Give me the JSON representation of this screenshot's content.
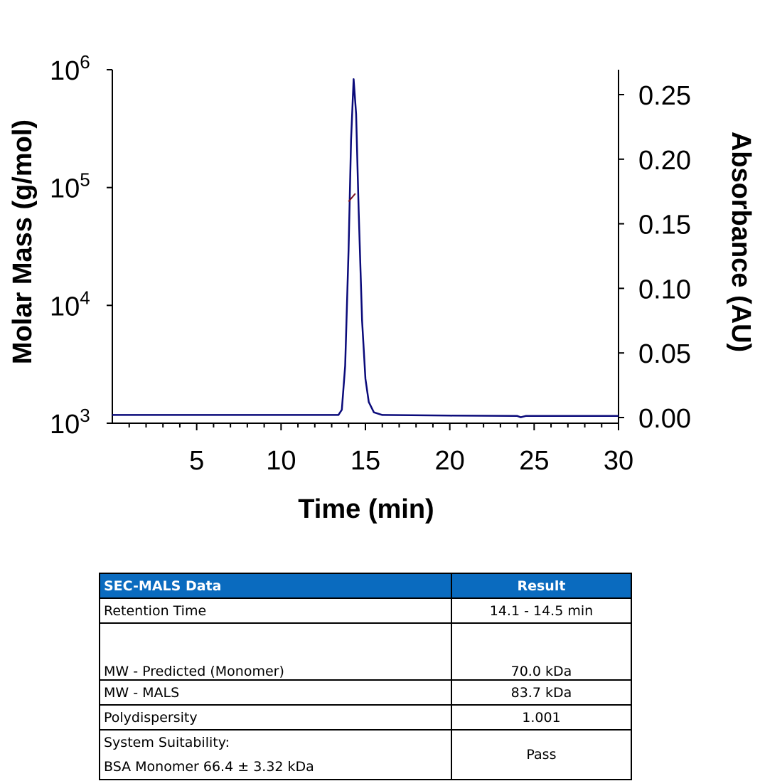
{
  "chart_data": {
    "type": "line",
    "xlabel": "Time (min)",
    "ylabel": "Molar Mass (g/mol)",
    "y2label": "Absorbance (AU)",
    "xlim": [
      0,
      30
    ],
    "ylim_log": [
      1000,
      1000000
    ],
    "y2lim": [
      0,
      0.27
    ],
    "x_ticks": [
      "5",
      "10",
      "15",
      "20",
      "25",
      "30"
    ],
    "x_tick_values": [
      5,
      10,
      15,
      20,
      25,
      30
    ],
    "y_ticks": [
      {
        "base": "10",
        "exp": "3",
        "value": 1000
      },
      {
        "base": "10",
        "exp": "4",
        "value": 10000
      },
      {
        "base": "10",
        "exp": "5",
        "value": 100000
      },
      {
        "base": "10",
        "exp": "6",
        "value": 1000000
      }
    ],
    "y2_ticks": [
      "0.00",
      "0.05",
      "0.10",
      "0.15",
      "0.20",
      "0.25"
    ],
    "y2_tick_values": [
      0,
      0.05,
      0.1,
      0.15,
      0.2,
      0.25
    ],
    "series": [
      {
        "name": "Absorbance",
        "axis": "right",
        "color": "#0a0a7a",
        "points": [
          [
            0,
            0.002
          ],
          [
            13.4,
            0.002
          ],
          [
            13.6,
            0.006
          ],
          [
            13.8,
            0.04
          ],
          [
            14.0,
            0.13
          ],
          [
            14.15,
            0.215
          ],
          [
            14.3,
            0.262
          ],
          [
            14.45,
            0.235
          ],
          [
            14.6,
            0.16
          ],
          [
            14.8,
            0.075
          ],
          [
            15.0,
            0.03
          ],
          [
            15.2,
            0.012
          ],
          [
            15.5,
            0.004
          ],
          [
            16.0,
            0.002
          ],
          [
            20,
            0.0015
          ],
          [
            24.0,
            0.0012
          ],
          [
            24.2,
            0.0002
          ],
          [
            24.5,
            0.0012
          ],
          [
            30,
            0.0012
          ]
        ]
      },
      {
        "name": "Molar Mass",
        "axis": "left",
        "color": "#7a1020",
        "points": [
          [
            14.0,
            76000
          ],
          [
            14.4,
            89000
          ]
        ]
      }
    ]
  },
  "table": {
    "headers": [
      "SEC-MALS Data",
      "Result"
    ],
    "rows": [
      {
        "label": "Retention Time",
        "value": "14.1 - 14.5 min"
      },
      {
        "label": "MW - Predicted (Monomer)",
        "value": "70.0 kDa"
      },
      {
        "label": "MW - MALS",
        "value": "83.7 kDa"
      },
      {
        "label": "Polydispersity",
        "value": "1.001"
      },
      {
        "label": "System Suitability:",
        "label2": "BSA Monomer 66.4 ± 3.32 kDa",
        "value": "Pass"
      }
    ]
  }
}
